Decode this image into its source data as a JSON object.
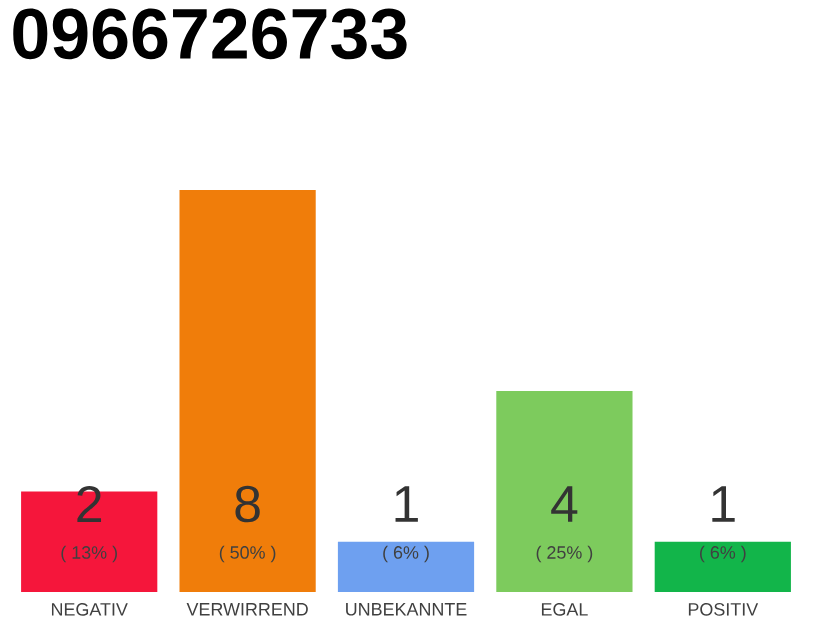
{
  "chart_data": {
    "type": "bar",
    "title": "0966726733",
    "categories": [
      "NEGATIV",
      "VERWIRREND",
      "UNBEKANNTE",
      "EGAL",
      "POSITIV"
    ],
    "values": [
      2,
      8,
      1,
      4,
      1
    ],
    "colors": [
      "#f5163b",
      "#f07d0a",
      "#6ea0f0",
      "#7dcb5d",
      "#12b54a"
    ],
    "data_labels": true,
    "annotations": [
      "( 13% )",
      "( 50% )",
      "( 6% )",
      "( 25% )",
      "( 6% )"
    ]
  }
}
